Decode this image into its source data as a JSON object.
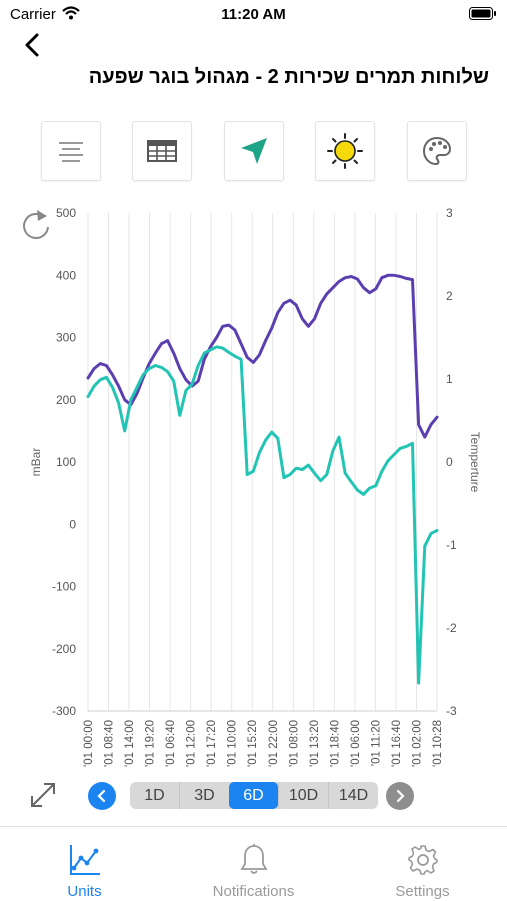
{
  "status_bar": {
    "carrier": "Carrier",
    "time": "11:20 AM"
  },
  "header": {
    "title": "שלוחות תמרים שכירות 2 - מגהול בוגר שפעה"
  },
  "toolbar": {
    "buttons": [
      {
        "icon": "lines-icon"
      },
      {
        "icon": "table-icon"
      },
      {
        "icon": "navigation-arrow-icon"
      },
      {
        "icon": "sun-icon",
        "color": "#f5d90a"
      },
      {
        "icon": "palette-icon"
      }
    ]
  },
  "chart_data": {
    "type": "line",
    "ylabel": "mBar",
    "y2label": "Temperture",
    "ylim": [
      -300,
      500
    ],
    "y2lim": [
      -3,
      3
    ],
    "yticks": [
      "500",
      "400",
      "300",
      "200",
      "100",
      "0",
      "-100",
      "-200",
      "-300"
    ],
    "y2ticks": [
      "3",
      "2",
      "1",
      "0",
      "-1",
      "-2",
      "-3"
    ],
    "x_labels": [
      "'01 00:00",
      "'01 08:40",
      "'01 14:00",
      "'01 19:20",
      "'01 06:40",
      "'01 12:00",
      "'01 17:20",
      "'01 10:00",
      "'01 15:20",
      "'01 22:00",
      "'01 08:00",
      "'01 13:20",
      "'01 18:40",
      "'01 06:00",
      "'01 11:20",
      "'01 16:40",
      "'01 02:00",
      "'01 10:28"
    ],
    "grid": true,
    "series": [
      {
        "color": "#5b3fb0",
        "axis": "left",
        "values": [
          235,
          250,
          258,
          255,
          240,
          222,
          200,
          192,
          210,
          235,
          258,
          275,
          290,
          295,
          275,
          250,
          232,
          222,
          230,
          265,
          285,
          300,
          318,
          320,
          312,
          290,
          268,
          260,
          272,
          295,
          315,
          340,
          355,
          360,
          352,
          330,
          318,
          330,
          355,
          370,
          380,
          390,
          396,
          398,
          394,
          380,
          372,
          378,
          396,
          400,
          400,
          398,
          395,
          393,
          160,
          140,
          160,
          172
        ]
      },
      {
        "color": "#22c4b4",
        "axis": "left",
        "values": [
          205,
          222,
          232,
          236,
          220,
          195,
          150,
          200,
          220,
          240,
          250,
          255,
          252,
          245,
          230,
          175,
          215,
          225,
          255,
          275,
          280,
          285,
          283,
          276,
          270,
          265,
          80,
          85,
          115,
          135,
          148,
          138,
          75,
          80,
          90,
          88,
          95,
          82,
          70,
          80,
          118,
          140,
          82,
          68,
          55,
          48,
          58,
          62,
          85,
          102,
          112,
          122,
          125,
          130,
          -255,
          -35,
          -15,
          -10
        ]
      }
    ]
  },
  "range_selector": {
    "options": [
      "1D",
      "3D",
      "6D",
      "10D",
      "14D"
    ],
    "selected": "6D"
  },
  "tabs": [
    {
      "label": "Units",
      "active": true,
      "icon": "chart-line-icon"
    },
    {
      "label": "Notifications",
      "active": false,
      "icon": "bell-icon"
    },
    {
      "label": "Settings",
      "active": false,
      "icon": "gear-icon"
    }
  ]
}
